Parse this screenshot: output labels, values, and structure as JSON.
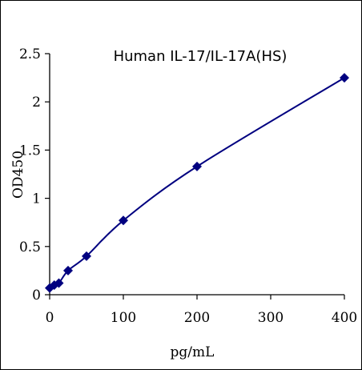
{
  "chart_data": {
    "type": "line",
    "title": "Human IL-17/IL-17A(HS)",
    "xlabel": "pg/mL",
    "ylabel": "OD450",
    "xlim": [
      0,
      400
    ],
    "ylim": [
      0,
      2.5
    ],
    "x_ticks": [
      0,
      100,
      200,
      300,
      400
    ],
    "x_tick_labels": [
      "0",
      "100",
      "200",
      "300",
      "400"
    ],
    "y_ticks": [
      0,
      0.5,
      1,
      1.5,
      2,
      2.5
    ],
    "y_tick_labels": [
      "0",
      "0.5",
      "1",
      "1.5",
      "2",
      "2.5"
    ],
    "grid": false,
    "series": [
      {
        "color": "#000080",
        "marker": "diamond",
        "points": [
          {
            "x": 0,
            "y": 0.07
          },
          {
            "x": 6.25,
            "y": 0.1
          },
          {
            "x": 12.5,
            "y": 0.12
          },
          {
            "x": 25,
            "y": 0.25
          },
          {
            "x": 50,
            "y": 0.4
          },
          {
            "x": 100,
            "y": 0.77
          },
          {
            "x": 200,
            "y": 1.33
          },
          {
            "x": 400,
            "y": 2.25
          }
        ]
      }
    ]
  }
}
